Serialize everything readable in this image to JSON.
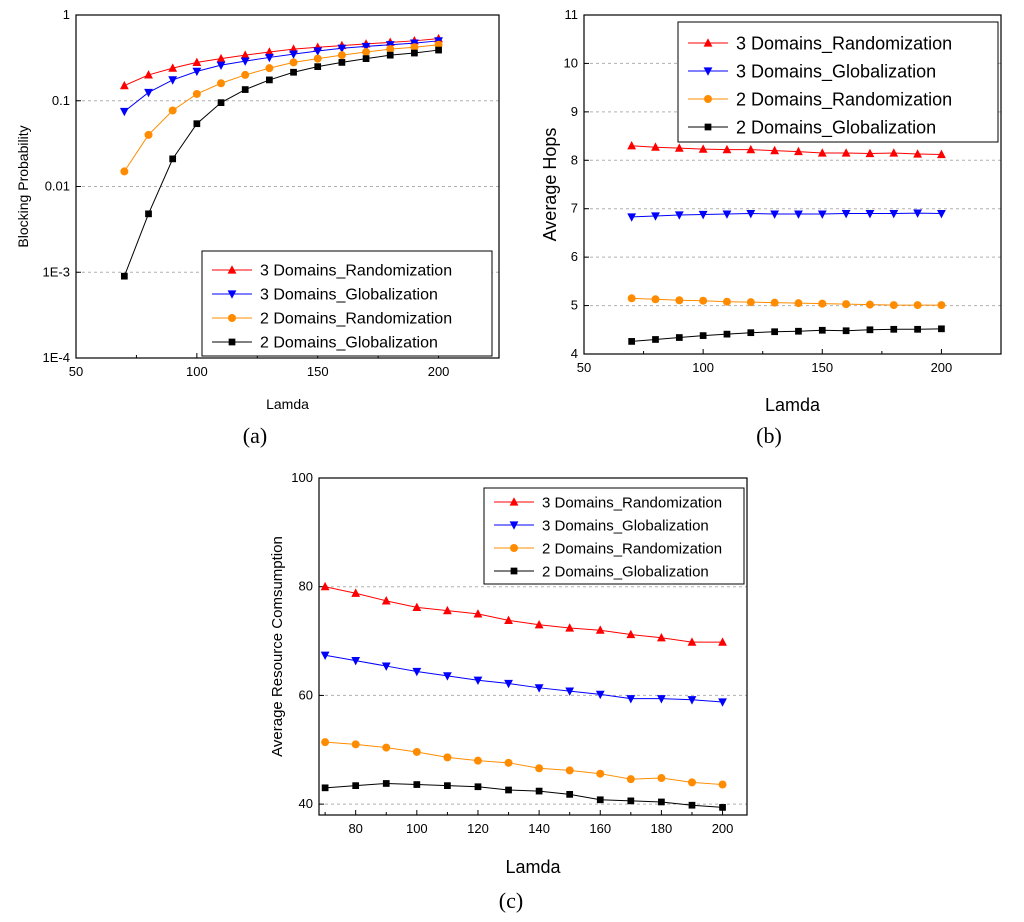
{
  "chart_data": [
    {
      "type": "line",
      "panel_label": "(a)",
      "xlabel": "Lamda",
      "ylabel": "Blocking Probability",
      "xlim": [
        50,
        225
      ],
      "ylim": [
        0.0001,
        1
      ],
      "yscale": "log",
      "xticks": [
        50,
        100,
        150,
        200
      ],
      "yticks": [
        0.0001,
        0.001,
        0.01,
        0.1,
        1
      ],
      "ytick_labels": [
        "1E-4",
        "1E-3",
        "0.01",
        "0.1",
        "1"
      ],
      "grid": "horizontal-dashed",
      "legend_position": "bottom-right",
      "x": [
        70,
        80,
        90,
        100,
        110,
        120,
        130,
        140,
        150,
        160,
        170,
        180,
        190,
        200
      ],
      "series": [
        {
          "name": "3 Domains_Randomization",
          "color": "#ff0000",
          "marker": "triangle-up",
          "values": [
            0.15,
            0.2,
            0.24,
            0.28,
            0.31,
            0.34,
            0.37,
            0.4,
            0.42,
            0.44,
            0.46,
            0.48,
            0.5,
            0.53
          ]
        },
        {
          "name": "3 Domains_Globalization",
          "color": "#0000ff",
          "marker": "triangle-down",
          "values": [
            0.075,
            0.125,
            0.175,
            0.22,
            0.26,
            0.29,
            0.32,
            0.35,
            0.38,
            0.41,
            0.43,
            0.45,
            0.47,
            0.5
          ]
        },
        {
          "name": "2 Domains_Randomization",
          "color": "#ff8c00",
          "marker": "circle",
          "values": [
            0.015,
            0.04,
            0.077,
            0.12,
            0.16,
            0.2,
            0.24,
            0.28,
            0.31,
            0.34,
            0.37,
            0.4,
            0.42,
            0.45
          ]
        },
        {
          "name": "2 Domains_Globalization",
          "color": "#000000",
          "marker": "square",
          "values": [
            0.0009,
            0.0048,
            0.021,
            0.054,
            0.095,
            0.135,
            0.175,
            0.215,
            0.25,
            0.28,
            0.31,
            0.34,
            0.36,
            0.39
          ]
        }
      ]
    },
    {
      "type": "line",
      "panel_label": "(b)",
      "xlabel": "Lamda",
      "ylabel": "Average Hops",
      "xlim": [
        50,
        225
      ],
      "ylim": [
        4,
        11
      ],
      "xticks": [
        50,
        100,
        150,
        200
      ],
      "yticks": [
        4,
        5,
        6,
        7,
        8,
        9,
        10,
        11
      ],
      "grid": "horizontal-dashed",
      "legend_position": "top-right",
      "x": [
        70,
        80,
        90,
        100,
        110,
        120,
        130,
        140,
        150,
        160,
        170,
        180,
        190,
        200
      ],
      "series": [
        {
          "name": "3 Domains_Randomization",
          "color": "#ff0000",
          "marker": "triangle-up",
          "values": [
            8.3,
            8.27,
            8.25,
            8.23,
            8.22,
            8.22,
            8.2,
            8.18,
            8.15,
            8.15,
            8.14,
            8.15,
            8.13,
            8.12
          ]
        },
        {
          "name": "3 Domains_Globalization",
          "color": "#0000ff",
          "marker": "triangle-down",
          "values": [
            6.83,
            6.85,
            6.87,
            6.88,
            6.89,
            6.9,
            6.89,
            6.89,
            6.89,
            6.9,
            6.9,
            6.9,
            6.91,
            6.9
          ]
        },
        {
          "name": "2 Domains_Randomization",
          "color": "#ff8c00",
          "marker": "circle",
          "values": [
            5.15,
            5.13,
            5.11,
            5.1,
            5.08,
            5.07,
            5.06,
            5.05,
            5.04,
            5.03,
            5.02,
            5.01,
            5.01,
            5.01
          ]
        },
        {
          "name": "2 Domains_Globalization",
          "color": "#000000",
          "marker": "square",
          "values": [
            4.26,
            4.3,
            4.34,
            4.38,
            4.41,
            4.44,
            4.46,
            4.47,
            4.49,
            4.48,
            4.5,
            4.51,
            4.51,
            4.52
          ]
        }
      ]
    },
    {
      "type": "line",
      "panel_label": "(c)",
      "xlabel": "Lamda",
      "ylabel": "Average Resource Comsumption",
      "xlim": [
        68,
        208
      ],
      "ylim": [
        38,
        100
      ],
      "xticks": [
        80,
        100,
        120,
        140,
        160,
        180,
        200
      ],
      "yticks": [
        40,
        60,
        80,
        100
      ],
      "grid": "horizontal-dashed",
      "legend_position": "top-right",
      "x": [
        70,
        80,
        90,
        100,
        110,
        120,
        130,
        140,
        150,
        160,
        170,
        180,
        190,
        200
      ],
      "series": [
        {
          "name": "3 Domains_Randomization",
          "color": "#ff0000",
          "marker": "triangle-up",
          "values": [
            80.0,
            78.8,
            77.4,
            76.2,
            75.6,
            75.0,
            73.8,
            73.0,
            72.4,
            72.0,
            71.2,
            70.6,
            69.8,
            69.8
          ]
        },
        {
          "name": "3 Domains_Globalization",
          "color": "#0000ff",
          "marker": "triangle-down",
          "values": [
            67.4,
            66.4,
            65.4,
            64.4,
            63.6,
            62.8,
            62.2,
            61.4,
            60.8,
            60.2,
            59.4,
            59.4,
            59.2,
            58.8
          ]
        },
        {
          "name": "2 Domains_Randomization",
          "color": "#ff8c00",
          "marker": "circle",
          "values": [
            51.4,
            51.0,
            50.4,
            49.6,
            48.6,
            48.0,
            47.6,
            46.6,
            46.2,
            45.6,
            44.6,
            44.8,
            44.0,
            43.6
          ]
        },
        {
          "name": "2 Domains_Globalization",
          "color": "#000000",
          "marker": "square",
          "values": [
            43.0,
            43.4,
            43.8,
            43.6,
            43.4,
            43.2,
            42.6,
            42.4,
            41.8,
            40.8,
            40.6,
            40.4,
            39.8,
            39.4
          ]
        }
      ]
    }
  ]
}
